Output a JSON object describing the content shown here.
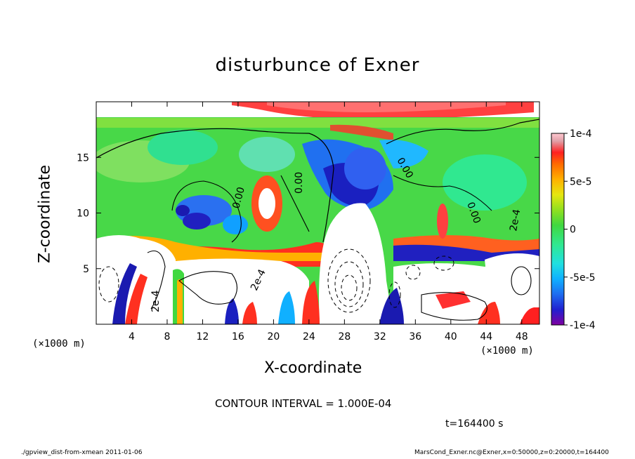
{
  "title": "disturbunce of Exner",
  "x_axis": {
    "label": "X-coordinate",
    "unit": "(×1000 m)",
    "ticks": [
      "4",
      "8",
      "12",
      "16",
      "20",
      "24",
      "28",
      "32",
      "36",
      "40",
      "44",
      "48"
    ],
    "range": [
      0,
      50
    ]
  },
  "y_axis": {
    "label": "Z-coordinate",
    "unit": "(×1000 m)",
    "ticks": [
      "5",
      "10",
      "15"
    ],
    "range": [
      0,
      20
    ]
  },
  "colorbar": {
    "ticks": [
      "1e-4",
      "5e-5",
      "0",
      "-5e-5",
      "-1e-4"
    ],
    "range": [
      -0.0001,
      0.0001
    ]
  },
  "contour_labels": [
    "0.00",
    "0.00",
    "0.00",
    "0.00",
    "2e-4",
    "2e-4",
    "2e-4"
  ],
  "contour_interval": "CONTOUR INTERVAL = 1.000E-04",
  "timestamp": "t=164400 s",
  "footer": {
    "left": "./gpview_dist-from-xmean  2011-01-06",
    "right": "MarsCond_Exner.nc@Exner,x=0:50000,z=0:20000,t=164400"
  },
  "colors": {
    "colorbar": [
      "#7f00a0",
      "#2020d0",
      "#1e6cf0",
      "#10b0ff",
      "#20e0e0",
      "#30e890",
      "#40d840",
      "#90e020",
      "#e6e610",
      "#ffb000",
      "#ff6a00",
      "#ff2020",
      "#e0a0a8",
      "#ffc8d0"
    ]
  },
  "chart_data": {
    "type": "heatmap",
    "title": "disturbunce of Exner",
    "xlabel": "X-coordinate",
    "ylabel": "Z-coordinate",
    "xlim": [
      0,
      50
    ],
    "ylim": [
      0,
      20
    ],
    "color_range": [
      -0.0001,
      0.0001
    ],
    "contour_interval": 0.0001,
    "grid": false,
    "legend": "right colorbar"
  }
}
